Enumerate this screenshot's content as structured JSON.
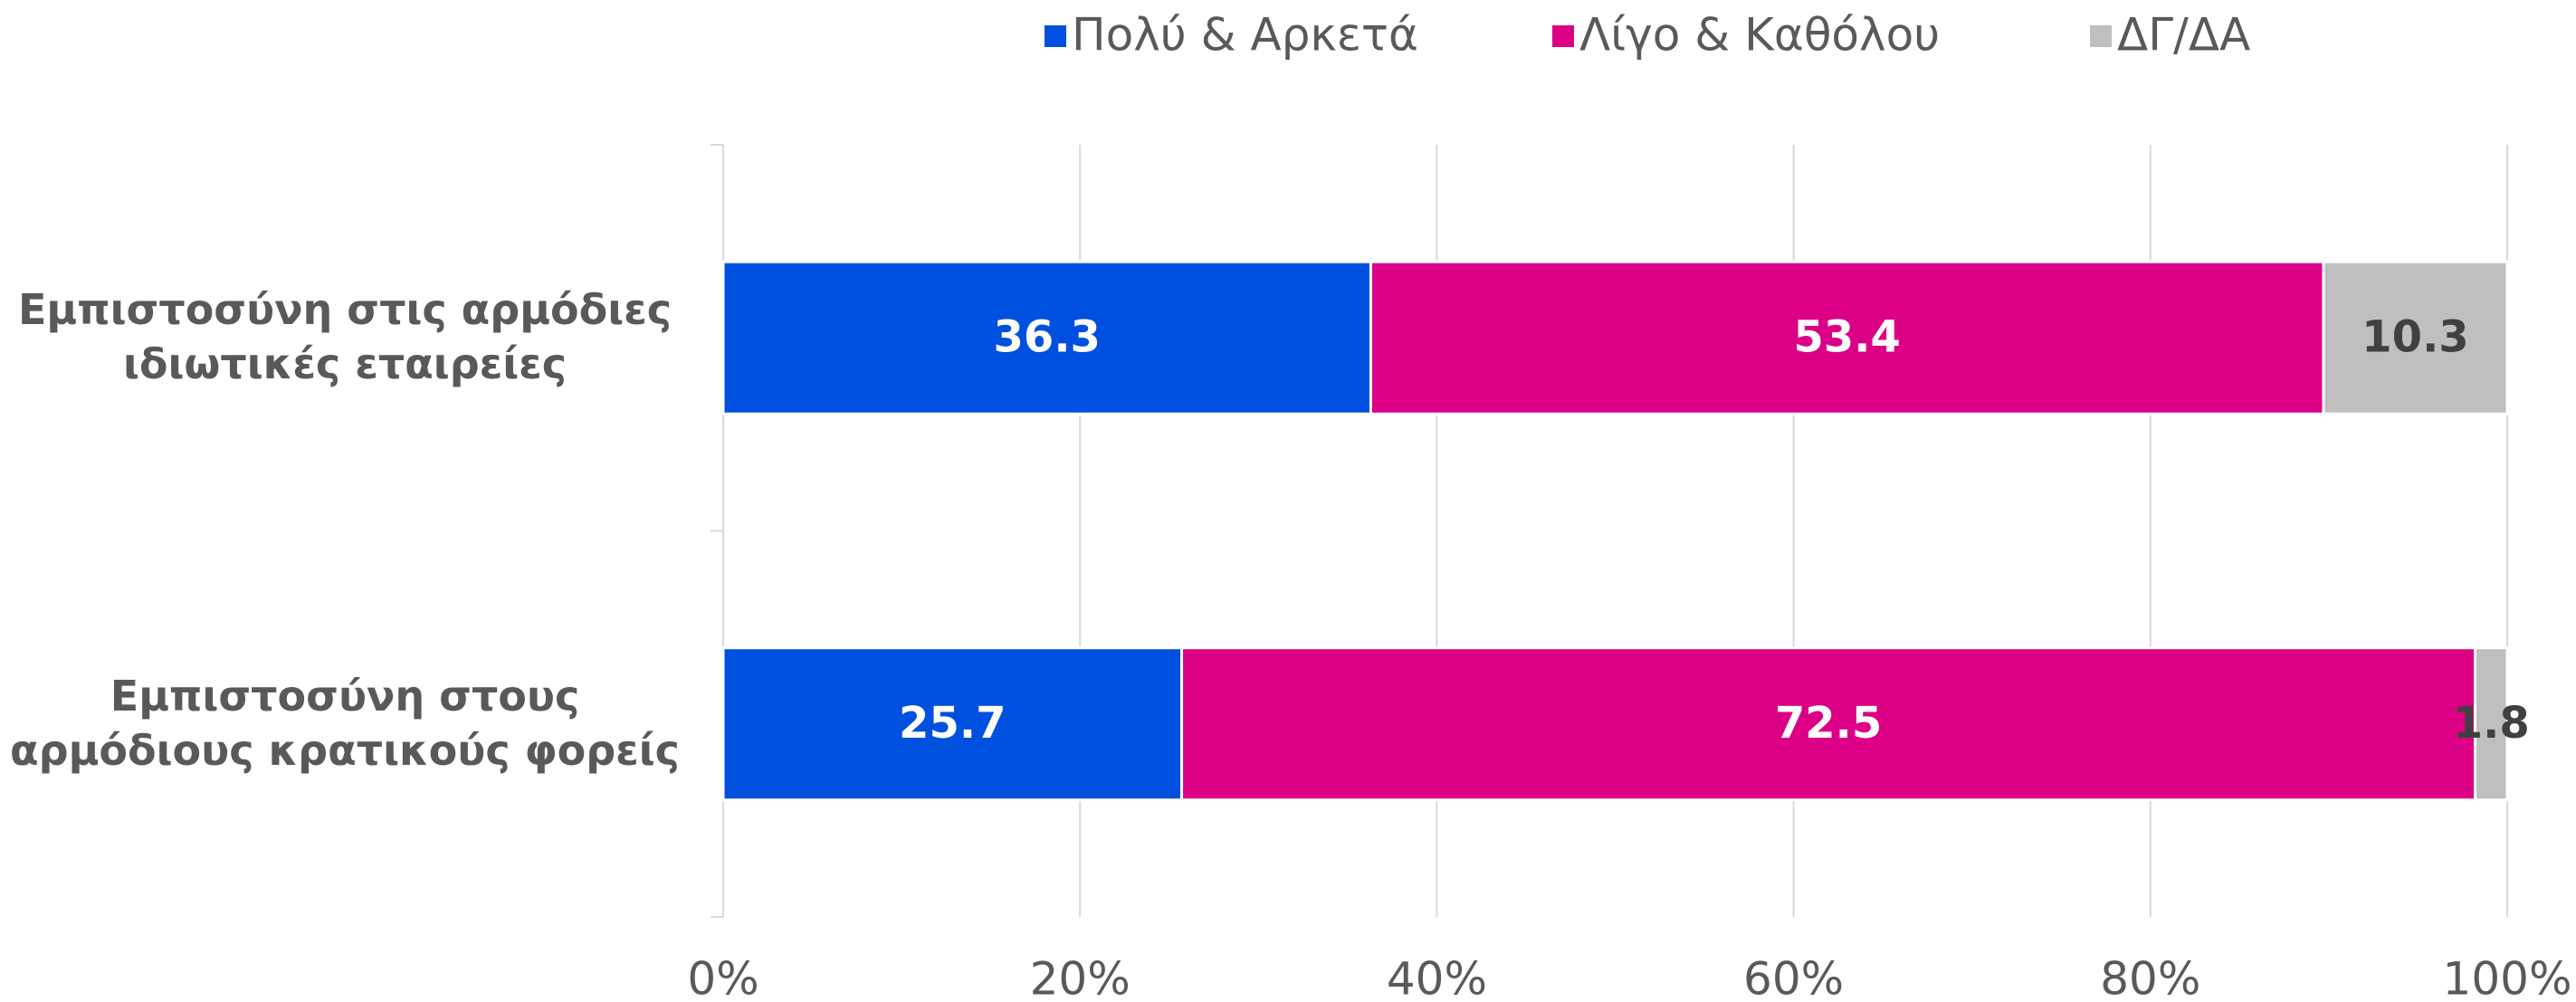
{
  "chart_data": {
    "type": "stacked_bar_horizontal",
    "categories": [
      "Εμπιστοσύνη στις αρμόδιες ιδιωτικές εταιρείες",
      "Εμπιστοσύνη στους αρμόδιους κρατικούς φορείς"
    ],
    "series": [
      {
        "name": "Πολύ & Αρκετά",
        "color": "#0050e0",
        "values": [
          36.3,
          25.7
        ]
      },
      {
        "name": "Λίγο & Καθόλου",
        "color": "#dc0087",
        "values": [
          53.4,
          72.5
        ]
      },
      {
        "name": "ΔΓ/ΔΑ",
        "color": "#bfbfbf",
        "values": [
          10.3,
          1.8
        ]
      }
    ],
    "xlim": [
      0,
      100
    ],
    "xticks": [
      {
        "value": 0,
        "label": "0%"
      },
      {
        "value": 20,
        "label": "20%"
      },
      {
        "value": 40,
        "label": "40%"
      },
      {
        "value": 60,
        "label": "60%"
      },
      {
        "value": 80,
        "label": "80%"
      },
      {
        "value": 100,
        "label": "100%"
      }
    ],
    "grid": true,
    "legend": "top"
  }
}
